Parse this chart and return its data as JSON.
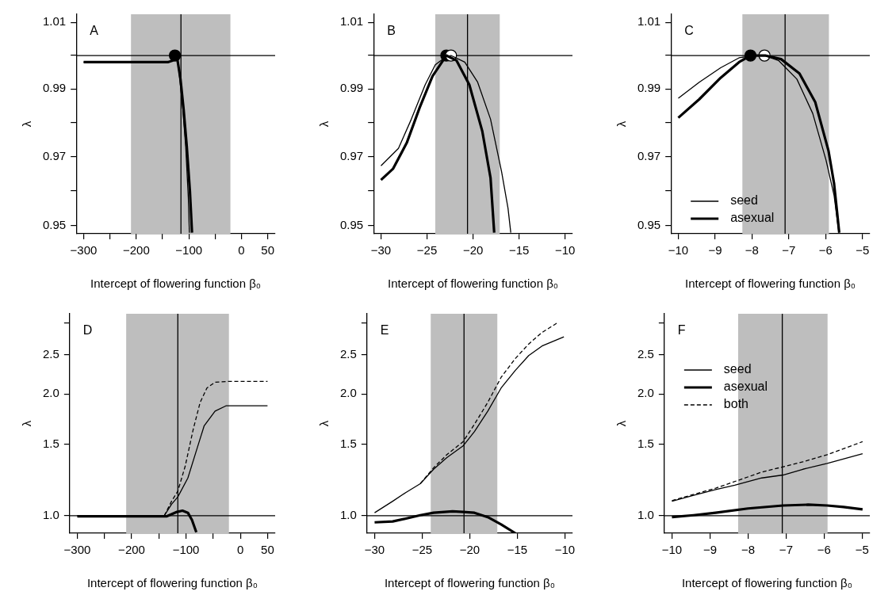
{
  "chart_data": [
    {
      "type": "line",
      "title": "A",
      "xlabel": "Intercept of flowering function β₀",
      "ylabel": "λ",
      "log": "y",
      "xlim": [
        -314,
        64
      ],
      "ylim": [
        0.9477,
        1.0125
      ],
      "xticks": [
        -300,
        {
          "value": -250,
          "label": null
        },
        -200,
        {
          "value": -150,
          "label": null
        },
        -100,
        {
          "value": -50,
          "label": null
        },
        0,
        50
      ],
      "yticks": [
        0.95,
        {
          "value": 0.96,
          "label": null
        },
        0.97,
        {
          "value": 0.98,
          "label": null
        },
        0.99,
        {
          "value": 1,
          "label": null
        },
        1.01
      ],
      "ref_lines": [
        {
          "axis": "x",
          "value": -115
        },
        {
          "axis": "y",
          "value": 1
        }
      ],
      "bands": [
        {
          "axis": "x",
          "from": -210,
          "to": -21,
          "color": "#bebebe"
        }
      ],
      "series": [
        {
          "type": "line",
          "color": "#000000",
          "x": [
            -300,
            -200,
            -140,
            -130,
            -126.5,
            -122,
            -118,
            -112,
            -106,
            -101,
            -99
          ],
          "values": [
            0.998,
            0.998,
            0.998,
            0.9985,
            1.0,
            0.9995,
            0.994,
            0.985,
            0.973,
            0.958,
            0.948
          ]
        },
        {
          "type": "line",
          "color": "#000000",
          "x": [
            -300,
            -200,
            -140,
            -130,
            -126.5,
            -122,
            -116,
            -110,
            -104,
            -98,
            -94
          ],
          "values": [
            0.998,
            0.998,
            0.998,
            0.9985,
            1.0,
            0.999,
            0.993,
            0.984,
            0.973,
            0.96,
            0.948
          ]
        },
        {
          "type": "scatter",
          "marker": "circle",
          "color": "#000000",
          "x": [
            -126.5
          ],
          "values": [
            1.0
          ]
        }
      ]
    },
    {
      "type": "line",
      "title": "B",
      "xlabel": "Intercept of flowering function β₀",
      "ylabel": "λ",
      "log": "y",
      "xlim": [
        -30.8,
        -9.2
      ],
      "ylim": [
        0.9477,
        1.0125
      ],
      "xticks": [
        -30,
        -25,
        -20,
        -15,
        -10
      ],
      "yticks": [
        0.95,
        {
          "value": 0.96,
          "label": null
        },
        0.97,
        {
          "value": 0.98,
          "label": null
        },
        0.99,
        {
          "value": 1,
          "label": null
        },
        1.01
      ],
      "ref_lines": [
        {
          "axis": "x",
          "value": -20.6
        },
        {
          "axis": "y",
          "value": 1
        }
      ],
      "bands": [
        {
          "axis": "x",
          "from": -24.1,
          "to": -17.1,
          "color": "#bebebe"
        }
      ],
      "series": [
        {
          "type": "line",
          "color": "#000000",
          "x": [
            -30,
            -28.1,
            -26.7,
            -25.2,
            -24.1,
            -22.9,
            -22.4,
            -20.9,
            -19.5,
            -18.1,
            -16.9,
            -16.2,
            -15.9
          ],
          "values": [
            0.9673,
            0.9724,
            0.981,
            0.9912,
            0.9972,
            0.9997,
            1.0,
            0.998,
            0.992,
            0.981,
            0.9656,
            0.955,
            0.948
          ]
        },
        {
          "type": "line",
          "color": "#000000",
          "x": [
            -30,
            -28.7,
            -27.2,
            -25.8,
            -24.4,
            -22.9,
            -21.8,
            -20.4,
            -19,
            -18.1,
            -17.7
          ],
          "values": [
            0.9632,
            0.9664,
            0.974,
            0.9844,
            0.9938,
            1.0,
            0.9985,
            0.9912,
            0.9775,
            0.9638,
            0.948
          ]
        },
        {
          "type": "scatter",
          "marker": "circle",
          "color": "#ffffff",
          "x": [
            -22.4
          ],
          "values": [
            1.0
          ]
        },
        {
          "type": "scatter",
          "marker": "circle",
          "color": "#000000",
          "x": [
            -22.9
          ],
          "values": [
            1.0
          ]
        }
      ]
    },
    {
      "type": "line",
      "title": "C",
      "xlabel": "Intercept of flowering function β₀",
      "ylabel": "λ",
      "log": "y",
      "legend": "bottom left",
      "xlim": [
        -10.2,
        -4.8
      ],
      "ylim": [
        0.9477,
        1.0125
      ],
      "xticks": [
        -10,
        -9,
        -8,
        -7,
        -6,
        -5
      ],
      "yticks": [
        0.95,
        {
          "value": 0.96,
          "label": null
        },
        0.97,
        {
          "value": 0.98,
          "label": null
        },
        0.99,
        {
          "value": 1,
          "label": null
        },
        1.01
      ],
      "ref_lines": [
        {
          "axis": "x",
          "value": -7.1
        },
        {
          "axis": "y",
          "value": 1
        }
      ],
      "bands": [
        {
          "axis": "x",
          "from": -8.26,
          "to": -5.91,
          "color": "#bebebe"
        }
      ],
      "series": [
        {
          "type": "line",
          "name": "seed",
          "color": "#000000",
          "x": [
            -10,
            -9.43,
            -8.85,
            -8.35,
            -7.92,
            -7.66,
            -7.28,
            -6.78,
            -6.35,
            -5.99,
            -5.77,
            -5.64
          ],
          "values": [
            0.9872,
            0.992,
            0.9963,
            0.9993,
            1.0,
            1.0,
            0.9985,
            0.9929,
            0.9827,
            0.969,
            0.9587,
            0.948
          ]
        },
        {
          "type": "line",
          "name": "asexual",
          "color": "#000000",
          "x": [
            -10,
            -9.43,
            -8.85,
            -8.35,
            -8.04,
            -7.64,
            -7.21,
            -6.71,
            -6.28,
            -5.92,
            -5.77,
            -5.63
          ],
          "values": [
            0.9814,
            0.9869,
            0.9933,
            0.998,
            1.0,
            1.0,
            0.9989,
            0.9946,
            0.986,
            0.9716,
            0.9621,
            0.948
          ]
        },
        {
          "type": "scatter",
          "marker": "circle",
          "color": "#ffffff",
          "x": [
            -7.66
          ],
          "values": [
            1.0
          ]
        },
        {
          "type": "scatter",
          "marker": "circle",
          "color": "#000000",
          "x": [
            -8.04
          ],
          "values": [
            1.0
          ]
        }
      ]
    },
    {
      "type": "line",
      "xlabel": "Intercept of flowering function β₀",
      "title": "D",
      "ylabel": "λ",
      "log": "y",
      "xlim": [
        -314,
        64
      ],
      "ylim": [
        0.905,
        3.16
      ],
      "xticks": [
        -300,
        {
          "value": -250,
          "label": null
        },
        -200,
        {
          "value": -150,
          "label": null
        },
        -100,
        {
          "value": -50,
          "label": null
        },
        0,
        50
      ],
      "yticks": [
        {
          "value": 1,
          "label": "1.0"
        },
        1.5,
        {
          "value": 2,
          "label": "2.0"
        },
        2.5,
        {
          "value": 3,
          "label": null
        }
      ],
      "ref_lines": [
        {
          "axis": "x",
          "value": -115
        },
        {
          "axis": "y",
          "value": 1
        }
      ],
      "bands": [
        {
          "axis": "x",
          "from": -210,
          "to": -21,
          "color": "#bebebe"
        }
      ],
      "series": [
        {
          "type": "line",
          "color": "#000000",
          "x": [
            -300,
            -200,
            -140,
            -126.5,
            -115,
            -96.5,
            -81.5,
            -66.5,
            -46.5,
            -26.5,
            50
          ],
          "values": [
            1.0,
            1.0,
            1.0,
            1.068,
            1.113,
            1.24,
            1.44,
            1.67,
            1.815,
            1.87,
            1.87
          ]
        },
        {
          "type": "line",
          "color": "#000000",
          "x": [
            -300,
            -200,
            -135,
            -116.5,
            -106.5,
            -96.5,
            -89,
            -81
          ],
          "values": [
            0.997,
            0.997,
            0.997,
            1.022,
            1.029,
            1.017,
            0.976,
            0.91
          ]
        },
        {
          "type": "line",
          "color": "#000000",
          "line_style": "dashed",
          "x": [
            -140,
            -126.5,
            -115,
            -101.5,
            -86.5,
            -74,
            -61.5,
            -46.5,
            -21.5,
            50
          ],
          "values": [
            1.0,
            1.086,
            1.151,
            1.325,
            1.64,
            1.907,
            2.07,
            2.14,
            2.15,
            2.15
          ]
        }
      ]
    },
    {
      "type": "line",
      "xlabel": "Intercept of flowering function β₀",
      "title": "E",
      "ylabel": "λ",
      "log": "y",
      "xlim": [
        -30.8,
        -9.2
      ],
      "ylim": [
        0.905,
        3.16
      ],
      "xticks": [
        -30,
        -25,
        -20,
        -15,
        -10
      ],
      "yticks": [
        {
          "value": 1,
          "label": "1.0"
        },
        1.5,
        {
          "value": 2,
          "label": "2.0"
        },
        2.5,
        {
          "value": 3,
          "label": null
        }
      ],
      "ref_lines": [
        {
          "axis": "x",
          "value": -20.6
        },
        {
          "axis": "y",
          "value": 1
        }
      ],
      "bands": [
        {
          "axis": "x",
          "from": -24.1,
          "to": -17.1,
          "color": "#bebebe"
        }
      ],
      "series": [
        {
          "type": "line",
          "color": "#000000",
          "x": [
            -30,
            -28.1,
            -26.7,
            -25.2,
            -23.8,
            -22.4,
            -20.7,
            -19.5,
            -18.1,
            -16.7,
            -15.2,
            -13.8,
            -12.4,
            -10.1
          ],
          "values": [
            1.017,
            1.086,
            1.142,
            1.2,
            1.303,
            1.393,
            1.488,
            1.616,
            1.815,
            2.07,
            2.29,
            2.49,
            2.63,
            2.77
          ]
        },
        {
          "type": "line",
          "color": "#000000",
          "x": [
            -30,
            -28.1,
            -26.7,
            -25.2,
            -23.8,
            -21.8,
            -20.7,
            -19.5,
            -18.1,
            -16.7,
            -15.2
          ],
          "values": [
            0.963,
            0.968,
            0.984,
            1.003,
            1.017,
            1.025,
            1.022,
            1.017,
            0.992,
            0.952,
            0.905
          ]
        },
        {
          "type": "line",
          "color": "#000000",
          "line_style": "dashed",
          "x": [
            -25.2,
            -23.8,
            -22.4,
            -20.7,
            -19.5,
            -18.1,
            -16.7,
            -15.2,
            -13.8,
            -12.4,
            -10.7
          ],
          "values": [
            1.2,
            1.314,
            1.416,
            1.525,
            1.684,
            1.908,
            2.2,
            2.45,
            2.66,
            2.84,
            3.01
          ]
        }
      ]
    },
    {
      "type": "line",
      "xlabel": "Intercept of flowering function β₀",
      "title": "F",
      "ylabel": "λ",
      "log": "y",
      "legend": "top left",
      "xlim": [
        -10.2,
        -4.8
      ],
      "ylim": [
        0.905,
        3.16
      ],
      "xticks": [
        -10,
        -9,
        -8,
        -7,
        -6,
        -5
      ],
      "yticks": [
        {
          "value": 1,
          "label": "1.0"
        },
        1.5,
        {
          "value": 2,
          "label": "2.0"
        },
        2.5,
        {
          "value": 3,
          "label": null
        }
      ],
      "ref_lines": [
        {
          "axis": "x",
          "value": -7.1
        },
        {
          "axis": "y",
          "value": 1
        }
      ],
      "bands": [
        {
          "axis": "x",
          "from": -8.26,
          "to": -5.91,
          "color": "#bebebe"
        }
      ],
      "series": [
        {
          "type": "line",
          "name": "seed",
          "color": "#000000",
          "x": [
            -10,
            -9.43,
            -8.85,
            -8.35,
            -7.64,
            -7.08,
            -6.56,
            -5.92,
            -4.99
          ],
          "values": [
            1.086,
            1.123,
            1.161,
            1.19,
            1.24,
            1.261,
            1.303,
            1.347,
            1.423
          ]
        },
        {
          "type": "line",
          "name": "asexual",
          "color": "#000000",
          "x": [
            -10,
            -9.43,
            -8.85,
            -8,
            -7.08,
            -6.42,
            -5.92,
            -5.49,
            -4.99
          ],
          "values": [
            0.992,
            1.003,
            1.017,
            1.042,
            1.06,
            1.065,
            1.06,
            1.051,
            1.037
          ]
        },
        {
          "type": "line",
          "name": "both",
          "color": "#000000",
          "line_style": "dashed",
          "x": [
            -10,
            -8.85,
            -7.64,
            -6.56,
            -5.92,
            -4.99
          ],
          "values": [
            1.09,
            1.17,
            1.282,
            1.359,
            1.416,
            1.525
          ]
        }
      ]
    }
  ]
}
